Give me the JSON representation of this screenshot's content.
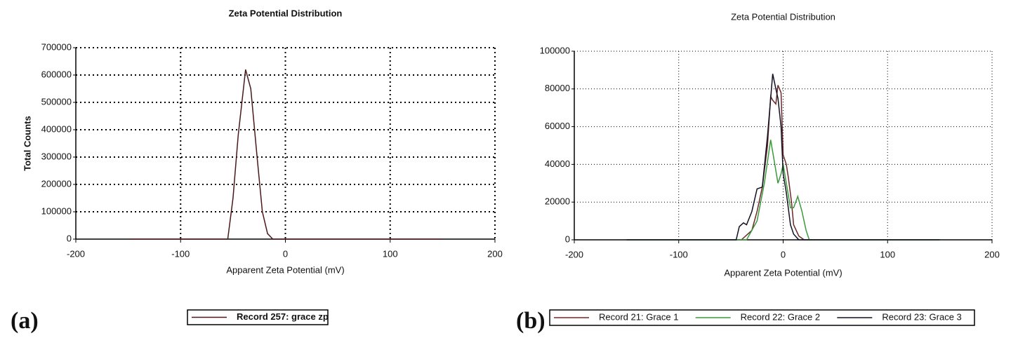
{
  "chart_data": [
    {
      "type": "line",
      "title": "Zeta Potential Distribution",
      "label": "(a)",
      "xlabel": "Apparent Zeta Potential (mV)",
      "ylabel": "Total Counts",
      "xlim": [
        -200,
        200
      ],
      "ylim": [
        0,
        700000
      ],
      "xticks": [
        -200,
        -100,
        0,
        100,
        200
      ],
      "yticks": [
        0,
        100000,
        200000,
        300000,
        400000,
        500000,
        600000,
        700000
      ],
      "grid": true,
      "series": [
        {
          "name": "Record 257: grace zp",
          "color": "#4a1a1a",
          "x": [
            -150,
            -55,
            -50,
            -45,
            -38,
            -33,
            -27,
            -22,
            -17,
            -12,
            150
          ],
          "values": [
            0,
            0,
            150000,
            380000,
            620000,
            550000,
            300000,
            100000,
            20000,
            0,
            0
          ]
        }
      ]
    },
    {
      "type": "line",
      "title": "Zeta Potential Distribution",
      "label": "(b)",
      "xlabel": "Apparent Zeta Potential (mV)",
      "xlim": [
        -200,
        200
      ],
      "ylim": [
        0,
        100000
      ],
      "xticks": [
        -200,
        -100,
        0,
        100,
        200
      ],
      "yticks": [
        0,
        20000,
        40000,
        60000,
        80000,
        100000
      ],
      "grid": true,
      "series": [
        {
          "name": "Record 21: Grace 1",
          "color": "#6b2a2a",
          "x": [
            -150,
            -40,
            -30,
            -25,
            -20,
            -15,
            -12,
            -10,
            -7,
            -5,
            -2,
            0,
            3,
            5,
            8,
            10,
            15,
            20,
            150
          ],
          "values": [
            0,
            0,
            5000,
            15000,
            28000,
            50000,
            76000,
            74000,
            72000,
            82000,
            78000,
            45000,
            40000,
            33000,
            20000,
            8000,
            2000,
            0,
            0
          ]
        },
        {
          "name": "Record 22: Grace 2",
          "color": "#3a9a3a",
          "x": [
            -150,
            -35,
            -25,
            -18,
            -12,
            -8,
            -5,
            -2,
            0,
            3,
            7,
            10,
            14,
            18,
            22,
            25,
            150
          ],
          "values": [
            0,
            0,
            10000,
            30000,
            53000,
            40000,
            30000,
            35000,
            40000,
            30000,
            17000,
            17000,
            23000,
            15000,
            5000,
            0,
            0
          ]
        },
        {
          "name": "Record 23: Grace 3",
          "color": "#111122",
          "x": [
            -150,
            -45,
            -42,
            -38,
            -35,
            -30,
            -25,
            -20,
            -15,
            -12,
            -10,
            -7,
            -5,
            -2,
            0,
            3,
            7,
            10,
            15,
            150
          ],
          "values": [
            0,
            0,
            7000,
            9000,
            8000,
            15000,
            27000,
            28000,
            55000,
            75000,
            88000,
            80000,
            75000,
            60000,
            35000,
            25000,
            8000,
            3000,
            0,
            0
          ]
        }
      ]
    }
  ]
}
